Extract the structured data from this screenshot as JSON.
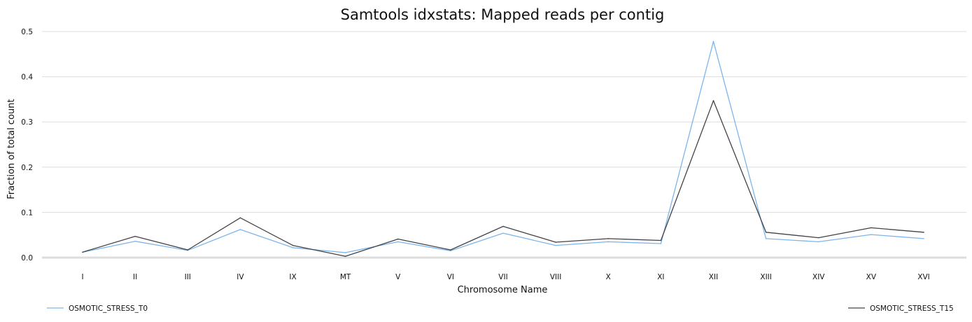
{
  "chart_data": {
    "type": "line",
    "title": "Samtools idxstats: Mapped reads per contig",
    "xlabel": "Chromosome Name",
    "ylabel": "Fraction of total count",
    "ylim": [
      0,
      0.5
    ],
    "yticks": [
      "0.0",
      "0.1",
      "0.2",
      "0.3",
      "0.4",
      "0.5"
    ],
    "grid": true,
    "legend_placement": "bottom",
    "categories": [
      "I",
      "II",
      "III",
      "IV",
      "IX",
      "MT",
      "V",
      "VI",
      "VII",
      "VIII",
      "X",
      "XI",
      "XII",
      "XIII",
      "XIV",
      "XV",
      "XVI"
    ],
    "series": [
      {
        "name": "OSMOTIC_STRESS_T0",
        "color": "#7cb5ec",
        "values": [
          0.012,
          0.036,
          0.016,
          0.062,
          0.022,
          0.011,
          0.035,
          0.015,
          0.054,
          0.027,
          0.035,
          0.031,
          0.478,
          0.042,
          0.035,
          0.051,
          0.042
        ]
      },
      {
        "name": "OSMOTIC_STRESS_T15",
        "color": "#434348",
        "values": [
          0.012,
          0.047,
          0.017,
          0.088,
          0.027,
          0.003,
          0.041,
          0.017,
          0.069,
          0.034,
          0.042,
          0.038,
          0.347,
          0.056,
          0.044,
          0.066,
          0.056
        ]
      }
    ]
  }
}
